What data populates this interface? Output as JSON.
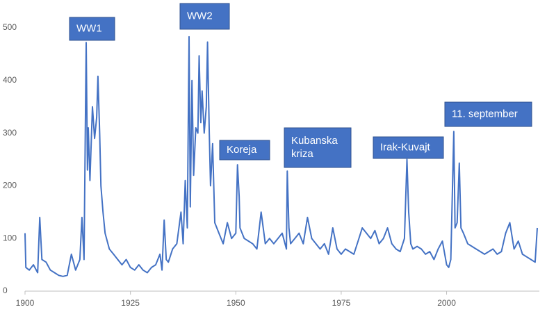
{
  "chart_data": {
    "type": "line",
    "x": [
      1900,
      1900.2,
      1901,
      1902,
      1903,
      1903.5,
      1904,
      1905,
      1906,
      1907,
      1908,
      1909,
      1910,
      1911,
      1912,
      1913,
      1913.5,
      1914,
      1914.5,
      1914.8,
      1915,
      1915.4,
      1916,
      1916.5,
      1917,
      1917.3,
      1917.7,
      1918,
      1918.5,
      1919,
      1920,
      1921,
      1922,
      1923,
      1924,
      1925,
      1926,
      1927,
      1928,
      1929,
      1930,
      1931,
      1932,
      1932.5,
      1933,
      1933.5,
      1934,
      1935,
      1936,
      1937,
      1937.5,
      1938,
      1938.5,
      1938.9,
      1939.2,
      1939.6,
      1940,
      1940.5,
      1941,
      1941.3,
      1941.7,
      1942,
      1942.5,
      1943,
      1943.3,
      1943.7,
      1944,
      1944.5,
      1945,
      1946,
      1947,
      1948,
      1949,
      1950,
      1950.4,
      1950.8,
      1951,
      1952,
      1953,
      1954,
      1955,
      1956,
      1957,
      1958,
      1959,
      1960,
      1961,
      1962,
      1962.2,
      1962.6,
      1963,
      1964,
      1965,
      1966,
      1967,
      1968,
      1969,
      1970,
      1971,
      1972,
      1973,
      1974,
      1975,
      1976,
      1977,
      1978,
      1979,
      1980,
      1981,
      1982,
      1983,
      1984,
      1985,
      1986,
      1987,
      1988,
      1989,
      1990,
      1990.6,
      1991,
      1991.5,
      1992,
      1993,
      1994,
      1995,
      1996,
      1997,
      1998,
      1999,
      2000,
      2000.5,
      2001,
      2001.7,
      2002,
      2002.5,
      2003,
      2003.4,
      2004,
      2005,
      2006,
      2007,
      2008,
      2009,
      2010,
      2011,
      2012,
      2013,
      2014,
      2015,
      2016,
      2017,
      2018,
      2019,
      2020,
      2021,
      2021.5
    ],
    "series": [
      {
        "color": "#4472c4",
        "values": [
          110,
          45,
          40,
          50,
          35,
          140,
          60,
          55,
          40,
          35,
          30,
          28,
          30,
          70,
          40,
          60,
          140,
          60,
          472,
          230,
          310,
          210,
          350,
          290,
          330,
          408,
          300,
          200,
          150,
          110,
          80,
          70,
          60,
          50,
          60,
          45,
          40,
          50,
          40,
          35,
          45,
          50,
          70,
          40,
          135,
          60,
          55,
          80,
          90,
          150,
          90,
          210,
          120,
          483,
          160,
          400,
          220,
          310,
          300,
          447,
          320,
          380,
          300,
          350,
          473,
          300,
          200,
          280,
          130,
          110,
          90,
          130,
          100,
          110,
          240,
          180,
          120,
          100,
          95,
          90,
          80,
          150,
          90,
          100,
          90,
          100,
          110,
          80,
          228,
          120,
          90,
          100,
          110,
          90,
          140,
          100,
          90,
          80,
          90,
          70,
          120,
          80,
          70,
          80,
          75,
          70,
          95,
          120,
          110,
          100,
          115,
          90,
          100,
          120,
          90,
          80,
          75,
          100,
          250,
          150,
          90,
          80,
          85,
          80,
          70,
          75,
          60,
          80,
          95,
          50,
          45,
          60,
          303,
          120,
          130,
          243,
          120,
          110,
          90,
          85,
          80,
          75,
          70,
          75,
          80,
          70,
          75,
          110,
          130,
          80,
          95,
          70,
          65,
          60,
          55,
          120
        ]
      }
    ],
    "xlim": [
      1900,
      2022
    ],
    "xticks": [
      1900,
      1925,
      1950,
      1975,
      2000
    ],
    "ylim": [
      0,
      500
    ],
    "yticks": [
      0,
      100,
      200,
      300,
      400,
      500
    ],
    "annotations": [
      {
        "lines": [
          "WW1"
        ]
      },
      {
        "lines": [
          "WW2"
        ]
      },
      {
        "lines": [
          "Koreja"
        ]
      },
      {
        "lines": [
          "Kubanska",
          "kriza"
        ]
      },
      {
        "lines": [
          "Irak-Kuvajt"
        ]
      },
      {
        "lines": [
          "11. september"
        ]
      }
    ]
  }
}
